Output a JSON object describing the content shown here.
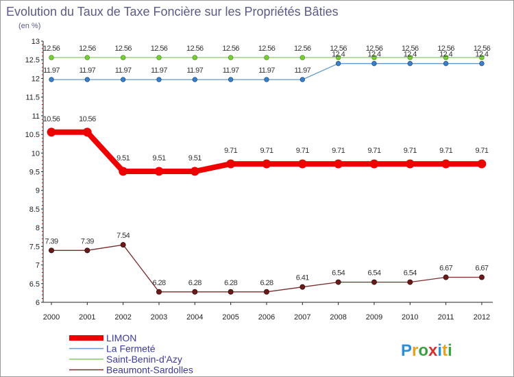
{
  "chart_data": {
    "type": "line",
    "title": "Evolution du Taux de Taxe Foncière sur les Propriétés Bâties",
    "ylabel": "(en %)",
    "xlabel": "",
    "categories": [
      "2000",
      "2001",
      "2002",
      "2003",
      "2004",
      "2005",
      "2006",
      "2007",
      "2008",
      "2009",
      "2010",
      "2011",
      "2012"
    ],
    "y_ticks": [
      "6",
      "6.5",
      "7",
      "7.5",
      "8",
      "8.5",
      "9",
      "9.5",
      "10",
      "10.5",
      "11",
      "11.5",
      "12",
      "12.5",
      "13"
    ],
    "ylim": [
      6,
      13
    ],
    "grid": false,
    "legend_position": "bottom-left",
    "series": [
      {
        "name": "LIMON",
        "color": "#ee0000",
        "values": [
          10.56,
          10.56,
          9.51,
          9.51,
          9.51,
          9.71,
          9.71,
          9.71,
          9.71,
          9.71,
          9.71,
          9.71,
          9.71
        ],
        "labels": [
          "10.56",
          "10.56",
          "9.51",
          "9.51",
          "9.51",
          "9.71",
          "9.71",
          "9.71",
          "9.71",
          "9.71",
          "9.71",
          "9.71",
          "9.71"
        ]
      },
      {
        "name": "La Fermeté",
        "color": "#6699cc",
        "values": [
          11.97,
          11.97,
          11.97,
          11.97,
          11.97,
          11.97,
          11.97,
          11.97,
          12.4,
          12.4,
          12.4,
          12.4,
          12.4
        ],
        "labels": [
          "11.97",
          "11.97",
          "11.97",
          "11.97",
          "11.97",
          "11.97",
          "11.97",
          "11.97",
          "12.4",
          "12.4",
          "12.4",
          "12.4",
          "12.4"
        ]
      },
      {
        "name": "Saint-Benin-d'Azy",
        "color": "#88cc66",
        "values": [
          12.56,
          12.56,
          12.56,
          12.56,
          12.56,
          12.56,
          12.56,
          12.56,
          12.56,
          12.56,
          12.56,
          12.56,
          12.56
        ],
        "labels": [
          "12.56",
          "12.56",
          "12.56",
          "12.56",
          "12.56",
          "12.56",
          "12.56",
          "12.56",
          "12.56",
          "12.56",
          "12.56",
          "12.56",
          "12.56"
        ]
      },
      {
        "name": "Beaumont-Sardolles",
        "color": "#7a2a2a",
        "values": [
          7.39,
          7.39,
          7.54,
          6.28,
          6.28,
          6.28,
          6.28,
          6.41,
          6.54,
          6.54,
          6.54,
          6.67,
          6.67
        ],
        "labels": [
          "7.39",
          "7.39",
          "7.54",
          "6.28",
          "6.28",
          "6.28",
          "6.28",
          "6.41",
          "6.54",
          "6.54",
          "6.54",
          "6.67",
          "6.67"
        ]
      }
    ]
  },
  "branding": {
    "logo_letters": [
      "P",
      "r",
      "o",
      "x",
      "i",
      "t",
      "i"
    ],
    "logo_colors": [
      "#2a8fd6",
      "#e8a020",
      "#3aa040",
      "#d83030",
      "#2a8fd6",
      "#e8a020",
      "#3aa040"
    ]
  }
}
